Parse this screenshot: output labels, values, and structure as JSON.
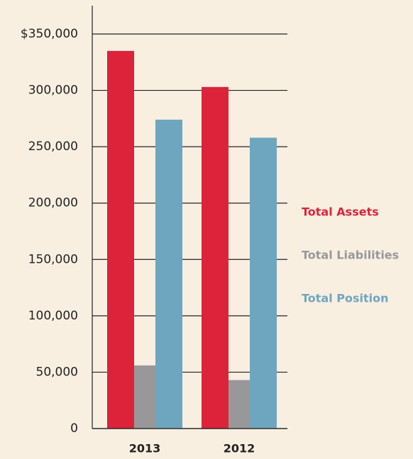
{
  "chart_data": {
    "type": "bar",
    "categories": [
      "2013",
      "2012"
    ],
    "series": [
      {
        "name": "Total Assets",
        "color": "#dc2339",
        "values": [
          335000,
          303000
        ]
      },
      {
        "name": "Total Liabilities",
        "color": "#98989a",
        "values": [
          56000,
          43000
        ]
      },
      {
        "name": "Total Position",
        "color": "#6ea6bf",
        "values": [
          274000,
          258000
        ]
      }
    ],
    "ylim": [
      0,
      350000
    ],
    "yticks": [
      0,
      {
        "value": 50000,
        "label": "50,000"
      },
      {
        "value": 100000,
        "label": "100,000"
      },
      {
        "value": 150000,
        "label": "150,000"
      },
      {
        "value": 200000,
        "label": "200,000"
      },
      {
        "value": 250000,
        "label": "250,000"
      },
      {
        "value": 300000,
        "label": "300,000"
      },
      {
        "value": 350000,
        "label": "$350,000"
      }
    ],
    "grid": true
  }
}
